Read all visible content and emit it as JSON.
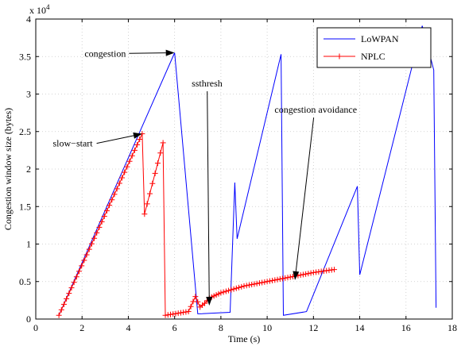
{
  "chart_data": {
    "type": "line",
    "xlabel": "Time (s)",
    "ylabel": "Congestion window size (bytes)",
    "exponent_label": "x 10",
    "exponent_power": "4",
    "xlim": [
      0,
      18
    ],
    "ylim": [
      0,
      40000
    ],
    "x_ticks": [
      0,
      2,
      4,
      6,
      8,
      10,
      12,
      14,
      16,
      18
    ],
    "y_ticks": [
      0,
      5000,
      10000,
      15000,
      20000,
      25000,
      30000,
      35000,
      40000
    ],
    "x_tick_labels": [
      "0",
      "2",
      "4",
      "6",
      "8",
      "10",
      "12",
      "14",
      "16",
      "18"
    ],
    "y_tick_labels": [
      "0",
      "0.5",
      "1",
      "1.5",
      "2",
      "2.5",
      "3",
      "3.5",
      "4"
    ],
    "grid": true,
    "legend_position": "top-right",
    "series": [
      {
        "name": "LoWPAN",
        "color": "#0000ff",
        "marker": "none",
        "x": [
          1.0,
          6.0,
          7.0,
          7.1,
          8.4,
          8.6,
          8.7,
          10.6,
          10.7,
          11.7,
          13.9,
          14.0,
          16.7,
          17.2,
          17.3
        ],
        "y": [
          500,
          35500,
          700,
          700,
          900,
          18200,
          10700,
          35300,
          500,
          1000,
          17700,
          5900,
          39100,
          33200,
          1500
        ]
      },
      {
        "name": "NPLC",
        "color": "#ff0000",
        "marker": "plus",
        "x": [
          1.0,
          4.6,
          4.7,
          5.5,
          5.6,
          6.6,
          6.9,
          7.1,
          7.3,
          7.5,
          8.0,
          9.0,
          10.0,
          11.0,
          12.0,
          12.9
        ],
        "y": [
          500,
          24700,
          14000,
          23500,
          500,
          1000,
          3000,
          1600,
          2100,
          2800,
          3500,
          4400,
          5000,
          5600,
          6200,
          6600
        ]
      }
    ],
    "annotations": [
      {
        "text": "congestion",
        "text_x": 3.0,
        "text_y": 35000,
        "arrow_x": 6.0,
        "arrow_y": 35500
      },
      {
        "text": "slow−start",
        "text_x": 1.6,
        "text_y": 23000,
        "arrow_x": 4.6,
        "arrow_y": 24700
      },
      {
        "text": "ssthresh",
        "text_x": 7.4,
        "text_y": 31000,
        "arrow_x": 7.5,
        "arrow_y": 1800
      },
      {
        "text": "congestion avoidance",
        "text_x": 12.1,
        "text_y": 27500,
        "arrow_x": 11.2,
        "arrow_y": 5200
      }
    ]
  }
}
